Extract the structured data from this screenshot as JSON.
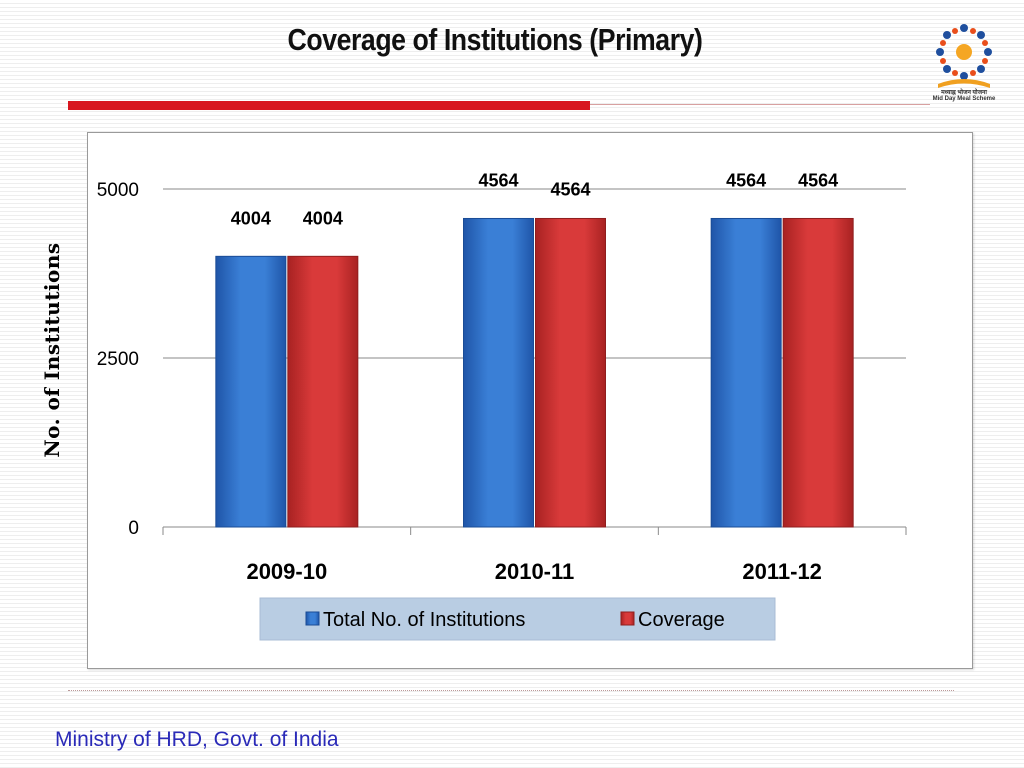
{
  "slide": {
    "title": "Coverage  of Institutions (Primary)",
    "footer": "Ministry of HRD, Govt. of India",
    "logo_caption": "मध्याह्न भोजन योजना",
    "logo_caption_en": "Mid Day Meal Scheme"
  },
  "chart_data": {
    "type": "bar",
    "title": "",
    "xlabel": "",
    "ylabel": "No. of Institutions",
    "categories": [
      "2009-10",
      "2010-11",
      "2011-12"
    ],
    "series": [
      {
        "name": "Total No. of Institutions",
        "values": [
          4004,
          4564,
          4564
        ],
        "color": "#3a7fd6"
      },
      {
        "name": "Coverage",
        "values": [
          4004,
          4564,
          4564
        ],
        "color": "#d93a3a"
      }
    ],
    "ylim": [
      0,
      5000
    ],
    "yticks": [
      0,
      2500,
      5000
    ],
    "grid": true,
    "legend": "bottom"
  }
}
